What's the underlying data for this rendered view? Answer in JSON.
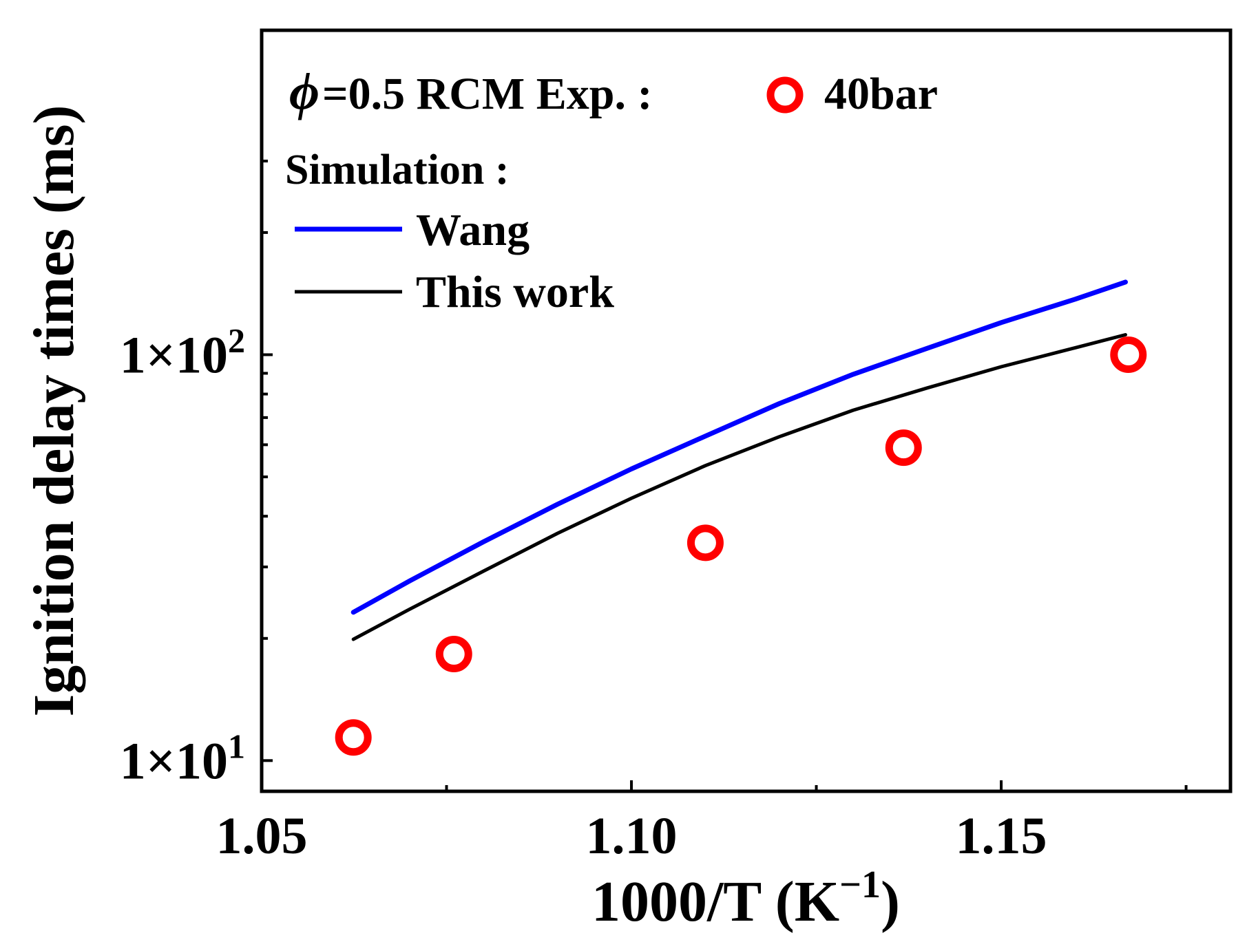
{
  "chart_data": {
    "type": "line",
    "yscale": "log",
    "xlabel_main": "1000/T (K",
    "xlabel_sup": "−1",
    "xlabel_close": ")",
    "ylabel": "Ignition delay times (ms)",
    "xlim": [
      1.05,
      1.181
    ],
    "ylim": [
      8.4,
      630
    ],
    "x_ticks": [
      1.05,
      1.1,
      1.15
    ],
    "x_tick_labels": [
      "1.05",
      "1.10",
      "1.15"
    ],
    "x_minor_ticks": [
      1.075,
      1.125,
      1.175
    ],
    "y_ticks": [
      10,
      100
    ],
    "y_tick_labels": [
      {
        "base": "1×10",
        "exp": "1"
      },
      {
        "base": "1×10",
        "exp": "2"
      }
    ],
    "y_minor_ticks": [
      20,
      30,
      40,
      50,
      60,
      70,
      80,
      90,
      200,
      300
    ],
    "legend": {
      "phi_symbol": "ϕ",
      "condition": "=0.5  RCM  Exp. :",
      "marker_label": "40bar",
      "sim_heading": "Simulation :",
      "line_labels": [
        "Wang",
        "This work"
      ]
    },
    "colors": {
      "experiment": "#ff0000",
      "wang": "#0000ff",
      "this_work": "#000000"
    },
    "series": [
      {
        "name": "40bar",
        "kind": "scatter",
        "x": [
          1.0624,
          1.076,
          1.11,
          1.1368,
          1.1672
        ],
        "y": [
          11.4,
          18.3,
          34.4,
          59.0,
          100.0
        ]
      },
      {
        "name": "Wang",
        "kind": "line",
        "x": [
          1.0624,
          1.07,
          1.08,
          1.09,
          1.1,
          1.11,
          1.12,
          1.13,
          1.14,
          1.15,
          1.16,
          1.1668
        ],
        "y": [
          23.2,
          27.7,
          34.6,
          42.8,
          52.3,
          63.0,
          75.8,
          89.5,
          103.7,
          120.0,
          137.0,
          151.0
        ]
      },
      {
        "name": "This work",
        "kind": "line",
        "x": [
          1.0624,
          1.07,
          1.08,
          1.09,
          1.1,
          1.11,
          1.12,
          1.13,
          1.14,
          1.15,
          1.16,
          1.1668
        ],
        "y": [
          19.9,
          23.6,
          29.3,
          36.3,
          44.3,
          53.3,
          62.8,
          73.0,
          82.8,
          93.4,
          104.0,
          112.0
        ]
      }
    ]
  }
}
